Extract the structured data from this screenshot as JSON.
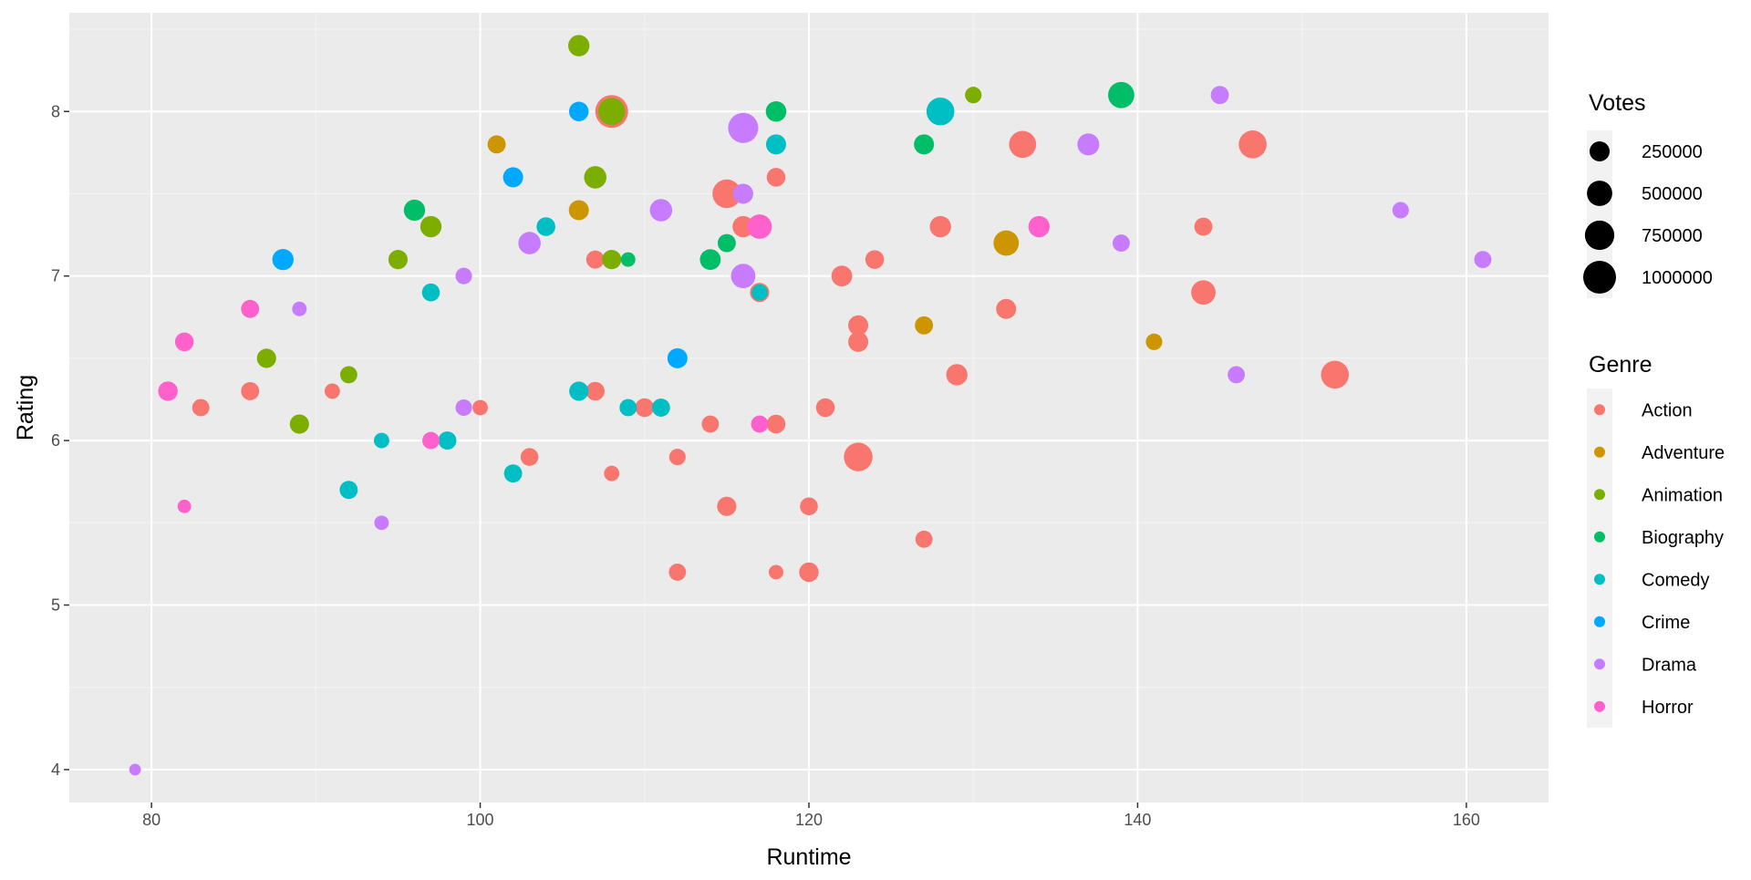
{
  "colors": {
    "panel_background": "#EBEBEB",
    "grid_major": "#FFFFFF",
    "grid_minor": "#F5F5F5",
    "Action": "#F8766D",
    "Adventure": "#CD9600",
    "Animation": "#7CAE00",
    "Biography": "#00BE67",
    "Comedy": "#00BFC4",
    "Crime": "#00A9FF",
    "Drama": "#C77CFF",
    "Horror": "#FF61CC"
  },
  "chart_data": {
    "type": "scatter",
    "xlabel": "Runtime",
    "ylabel": "Rating",
    "xlim": [
      75,
      165
    ],
    "ylim": [
      3.8,
      8.6
    ],
    "x_ticks": [
      "80",
      "100",
      "120",
      "140",
      "160"
    ],
    "y_ticks": [
      "4",
      "5",
      "6",
      "7",
      "8"
    ],
    "grid": true,
    "legend_position": "right",
    "size_legend": {
      "title": "Votes",
      "entries": [
        {
          "value": 250000,
          "label": "250000"
        },
        {
          "value": 500000,
          "label": "500000"
        },
        {
          "value": 750000,
          "label": "750000"
        },
        {
          "value": 1000000,
          "label": "1000000"
        }
      ]
    },
    "color_legend": {
      "title": "Genre",
      "entries": [
        "Action",
        "Adventure",
        "Animation",
        "Biography",
        "Comedy",
        "Crime",
        "Drama",
        "Horror"
      ]
    },
    "points": [
      {
        "genre": "Action",
        "x": 83,
        "y": 6.2,
        "votes": 150000
      },
      {
        "genre": "Action",
        "x": 86,
        "y": 6.3,
        "votes": 180000
      },
      {
        "genre": "Action",
        "x": 91,
        "y": 6.3,
        "votes": 100000
      },
      {
        "genre": "Action",
        "x": 100,
        "y": 6.2,
        "votes": 100000
      },
      {
        "genre": "Action",
        "x": 103,
        "y": 5.9,
        "votes": 170000
      },
      {
        "genre": "Action",
        "x": 107,
        "y": 7.1,
        "votes": 180000
      },
      {
        "genre": "Action",
        "x": 107,
        "y": 6.3,
        "votes": 200000
      },
      {
        "genre": "Action",
        "x": 108,
        "y": 5.8,
        "votes": 100000
      },
      {
        "genre": "Action",
        "x": 108,
        "y": 8.0,
        "votes": 1000000
      },
      {
        "genre": "Action",
        "x": 110,
        "y": 6.2,
        "votes": 200000
      },
      {
        "genre": "Action",
        "x": 112,
        "y": 5.9,
        "votes": 130000
      },
      {
        "genre": "Action",
        "x": 112,
        "y": 5.2,
        "votes": 150000
      },
      {
        "genre": "Action",
        "x": 114,
        "y": 6.1,
        "votes": 150000
      },
      {
        "genre": "Action",
        "x": 115,
        "y": 7.5,
        "votes": 700000
      },
      {
        "genre": "Action",
        "x": 115,
        "y": 5.6,
        "votes": 220000
      },
      {
        "genre": "Action",
        "x": 116,
        "y": 7.3,
        "votes": 300000
      },
      {
        "genre": "Action",
        "x": 117,
        "y": 6.9,
        "votes": 220000
      },
      {
        "genre": "Action",
        "x": 118,
        "y": 7.6,
        "votes": 200000
      },
      {
        "genre": "Action",
        "x": 118,
        "y": 6.1,
        "votes": 200000
      },
      {
        "genre": "Action",
        "x": 118,
        "y": 5.2,
        "votes": 80000
      },
      {
        "genre": "Action",
        "x": 120,
        "y": 5.6,
        "votes": 170000
      },
      {
        "genre": "Action",
        "x": 120,
        "y": 5.2,
        "votes": 230000
      },
      {
        "genre": "Action",
        "x": 121,
        "y": 6.2,
        "votes": 200000
      },
      {
        "genre": "Action",
        "x": 122,
        "y": 7.0,
        "votes": 280000
      },
      {
        "genre": "Action",
        "x": 123,
        "y": 6.7,
        "votes": 250000
      },
      {
        "genre": "Action",
        "x": 123,
        "y": 6.6,
        "votes": 250000
      },
      {
        "genre": "Action",
        "x": 123,
        "y": 5.9,
        "votes": 700000
      },
      {
        "genre": "Action",
        "x": 124,
        "y": 7.1,
        "votes": 200000
      },
      {
        "genre": "Action",
        "x": 127,
        "y": 5.4,
        "votes": 150000
      },
      {
        "genre": "Action",
        "x": 128,
        "y": 7.3,
        "votes": 300000
      },
      {
        "genre": "Action",
        "x": 129,
        "y": 6.4,
        "votes": 300000
      },
      {
        "genre": "Action",
        "x": 132,
        "y": 6.8,
        "votes": 250000
      },
      {
        "genre": "Action",
        "x": 133,
        "y": 7.8,
        "votes": 600000
      },
      {
        "genre": "Action",
        "x": 144,
        "y": 7.3,
        "votes": 180000
      },
      {
        "genre": "Action",
        "x": 144,
        "y": 6.9,
        "votes": 450000
      },
      {
        "genre": "Action",
        "x": 147,
        "y": 7.8,
        "votes": 650000
      },
      {
        "genre": "Action",
        "x": 152,
        "y": 6.4,
        "votes": 650000
      },
      {
        "genre": "Adventure",
        "x": 101,
        "y": 7.8,
        "votes": 180000
      },
      {
        "genre": "Adventure",
        "x": 106,
        "y": 7.4,
        "votes": 250000
      },
      {
        "genre": "Adventure",
        "x": 127,
        "y": 6.7,
        "votes": 180000
      },
      {
        "genre": "Adventure",
        "x": 132,
        "y": 7.2,
        "votes": 500000
      },
      {
        "genre": "Adventure",
        "x": 141,
        "y": 6.6,
        "votes": 130000
      },
      {
        "genre": "Animation",
        "x": 87,
        "y": 6.5,
        "votes": 220000
      },
      {
        "genre": "Animation",
        "x": 89,
        "y": 6.1,
        "votes": 220000
      },
      {
        "genre": "Animation",
        "x": 92,
        "y": 6.4,
        "votes": 150000
      },
      {
        "genre": "Animation",
        "x": 95,
        "y": 7.1,
        "votes": 220000
      },
      {
        "genre": "Animation",
        "x": 97,
        "y": 7.3,
        "votes": 300000
      },
      {
        "genre": "Animation",
        "x": 106,
        "y": 8.4,
        "votes": 300000
      },
      {
        "genre": "Animation",
        "x": 107,
        "y": 7.6,
        "votes": 350000
      },
      {
        "genre": "Animation",
        "x": 108,
        "y": 8.0,
        "votes": 600000
      },
      {
        "genre": "Animation",
        "x": 108,
        "y": 7.1,
        "votes": 220000
      },
      {
        "genre": "Animation",
        "x": 130,
        "y": 8.1,
        "votes": 130000
      },
      {
        "genre": "Biography",
        "x": 96,
        "y": 7.4,
        "votes": 300000
      },
      {
        "genre": "Biography",
        "x": 109,
        "y": 7.1,
        "votes": 80000
      },
      {
        "genre": "Biography",
        "x": 114,
        "y": 7.1,
        "votes": 280000
      },
      {
        "genre": "Biography",
        "x": 115,
        "y": 7.2,
        "votes": 180000
      },
      {
        "genre": "Biography",
        "x": 118,
        "y": 8.0,
        "votes": 270000
      },
      {
        "genre": "Biography",
        "x": 127,
        "y": 7.8,
        "votes": 250000
      },
      {
        "genre": "Biography",
        "x": 139,
        "y": 8.1,
        "votes": 550000
      },
      {
        "genre": "Comedy",
        "x": 92,
        "y": 5.7,
        "votes": 180000
      },
      {
        "genre": "Comedy",
        "x": 94,
        "y": 6.0,
        "votes": 100000
      },
      {
        "genre": "Comedy",
        "x": 97,
        "y": 6.9,
        "votes": 170000
      },
      {
        "genre": "Comedy",
        "x": 98,
        "y": 6.0,
        "votes": 180000
      },
      {
        "genre": "Comedy",
        "x": 102,
        "y": 5.8,
        "votes": 180000
      },
      {
        "genre": "Comedy",
        "x": 104,
        "y": 7.3,
        "votes": 200000
      },
      {
        "genre": "Comedy",
        "x": 106,
        "y": 6.3,
        "votes": 220000
      },
      {
        "genre": "Comedy",
        "x": 109,
        "y": 6.2,
        "votes": 150000
      },
      {
        "genre": "Comedy",
        "x": 111,
        "y": 6.2,
        "votes": 180000
      },
      {
        "genre": "Comedy",
        "x": 117,
        "y": 6.9,
        "votes": 120000
      },
      {
        "genre": "Comedy",
        "x": 118,
        "y": 7.8,
        "votes": 250000
      },
      {
        "genre": "Comedy",
        "x": 128,
        "y": 8.0,
        "votes": 650000
      },
      {
        "genre": "Crime",
        "x": 88,
        "y": 7.1,
        "votes": 300000
      },
      {
        "genre": "Crime",
        "x": 102,
        "y": 7.6,
        "votes": 250000
      },
      {
        "genre": "Crime",
        "x": 106,
        "y": 8.0,
        "votes": 230000
      },
      {
        "genre": "Crime",
        "x": 112,
        "y": 6.5,
        "votes": 250000
      },
      {
        "genre": "Drama",
        "x": 79,
        "y": 4.0,
        "votes": 30000
      },
      {
        "genre": "Drama",
        "x": 89,
        "y": 6.8,
        "votes": 80000
      },
      {
        "genre": "Drama",
        "x": 94,
        "y": 5.5,
        "votes": 80000
      },
      {
        "genre": "Drama",
        "x": 99,
        "y": 7.0,
        "votes": 130000
      },
      {
        "genre": "Drama",
        "x": 99,
        "y": 6.2,
        "votes": 130000
      },
      {
        "genre": "Drama",
        "x": 103,
        "y": 7.2,
        "votes": 350000
      },
      {
        "genre": "Drama",
        "x": 111,
        "y": 7.4,
        "votes": 350000
      },
      {
        "genre": "Drama",
        "x": 116,
        "y": 7.9,
        "votes": 800000
      },
      {
        "genre": "Drama",
        "x": 116,
        "y": 7.5,
        "votes": 250000
      },
      {
        "genre": "Drama",
        "x": 116,
        "y": 7.0,
        "votes": 450000
      },
      {
        "genre": "Drama",
        "x": 137,
        "y": 7.8,
        "votes": 330000
      },
      {
        "genre": "Drama",
        "x": 139,
        "y": 7.2,
        "votes": 150000
      },
      {
        "genre": "Drama",
        "x": 145,
        "y": 8.1,
        "votes": 180000
      },
      {
        "genre": "Drama",
        "x": 146,
        "y": 6.4,
        "votes": 150000
      },
      {
        "genre": "Drama",
        "x": 156,
        "y": 7.4,
        "votes": 130000
      },
      {
        "genre": "Drama",
        "x": 161,
        "y": 7.1,
        "votes": 150000
      },
      {
        "genre": "Horror",
        "x": 81,
        "y": 6.3,
        "votes": 230000
      },
      {
        "genre": "Horror",
        "x": 82,
        "y": 6.6,
        "votes": 200000
      },
      {
        "genre": "Horror",
        "x": 82,
        "y": 5.6,
        "votes": 60000
      },
      {
        "genre": "Horror",
        "x": 86,
        "y": 6.8,
        "votes": 180000
      },
      {
        "genre": "Horror",
        "x": 97,
        "y": 6.0,
        "votes": 150000
      },
      {
        "genre": "Horror",
        "x": 117,
        "y": 6.1,
        "votes": 150000
      },
      {
        "genre": "Horror",
        "x": 117,
        "y": 7.3,
        "votes": 450000
      },
      {
        "genre": "Horror",
        "x": 134,
        "y": 7.3,
        "votes": 300000
      }
    ]
  }
}
